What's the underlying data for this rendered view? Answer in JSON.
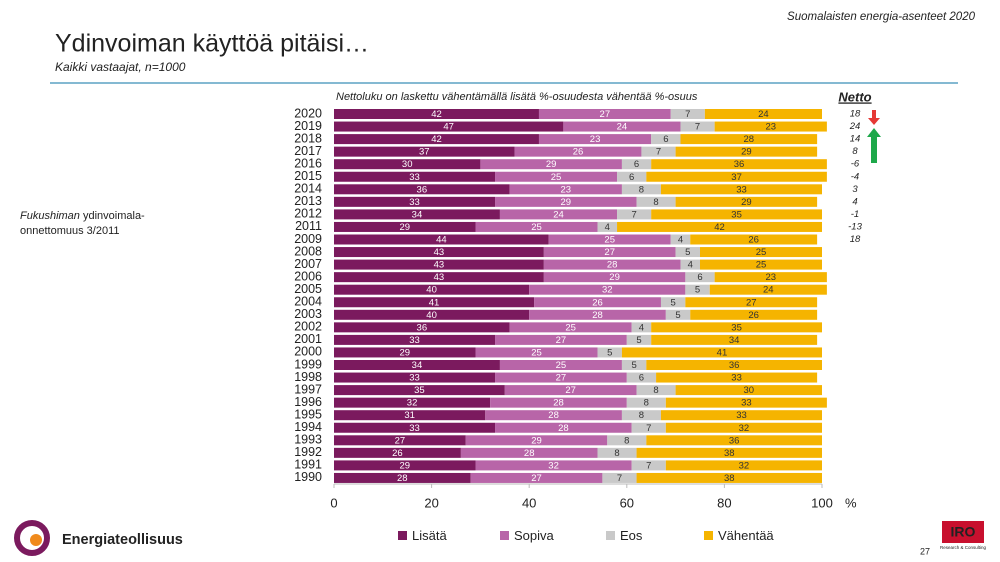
{
  "header": {
    "survey": "Suomalaisten energia-asenteet 2020",
    "page": "27"
  },
  "footer": {
    "logo_left": "Energiateollisuus",
    "logo_right": "IRO",
    "logo_right_sub": "Research & Consulting"
  },
  "chart_data": {
    "type": "stacked-bar-horizontal",
    "title": "Ydinvoiman käyttöä pitäisi…",
    "subtitle": "Kaikki vastaajat, n=1000",
    "note": "Nettoluku on laskettu vähentämällä lisätä %-osuudesta vähentää %-osuus",
    "x_unit": "%",
    "annotation": {
      "italic": "Fukushiman",
      "rest": " ydinvoimala-",
      "line2": "onnettomuus 3/2011"
    },
    "categories": [
      "2020",
      "2019",
      "2018",
      "2017",
      "2016",
      "2015",
      "2014",
      "2013",
      "2012",
      "2011",
      "2009",
      "2008",
      "2007",
      "2006",
      "2005",
      "2004",
      "2003",
      "2002",
      "2001",
      "2000",
      "1999",
      "1998",
      "1997",
      "1996",
      "1995",
      "1994",
      "1993",
      "1992",
      "1991",
      "1990"
    ],
    "xlim": [
      0,
      100
    ],
    "xticks": [
      0,
      20,
      40,
      60,
      80,
      100
    ],
    "legend": "bottom",
    "series": [
      {
        "name": "Lisätä",
        "color": "#7b1a5e",
        "label_color": "#ffffff",
        "values": [
          42,
          47,
          42,
          37,
          30,
          33,
          36,
          33,
          34,
          29,
          44,
          43,
          43,
          43,
          40,
          41,
          40,
          36,
          33,
          29,
          34,
          33,
          35,
          32,
          31,
          33,
          27,
          26,
          29,
          28
        ]
      },
      {
        "name": "Sopiva",
        "color": "#b865a8",
        "label_color": "#ffffff",
        "values": [
          27,
          24,
          23,
          26,
          29,
          25,
          23,
          29,
          24,
          25,
          25,
          27,
          28,
          29,
          32,
          26,
          28,
          25,
          27,
          25,
          25,
          27,
          27,
          28,
          28,
          28,
          29,
          28,
          32,
          27
        ]
      },
      {
        "name": "Eos",
        "color": "#c9c9c9",
        "label_color": "#333333",
        "values": [
          7,
          7,
          6,
          7,
          6,
          6,
          8,
          8,
          7,
          4,
          4,
          5,
          4,
          6,
          5,
          5,
          5,
          4,
          5,
          5,
          5,
          6,
          8,
          8,
          8,
          7,
          8,
          8,
          7,
          7
        ]
      },
      {
        "name": "Vähentää",
        "color": "#f5b400",
        "label_color": "#333333",
        "values": [
          24,
          23,
          28,
          29,
          36,
          37,
          33,
          29,
          35,
          42,
          26,
          25,
          25,
          23,
          24,
          27,
          26,
          35,
          34,
          41,
          36,
          33,
          30,
          33,
          33,
          32,
          36,
          38,
          32,
          38
        ]
      }
    ],
    "netto": {
      "label": "Netto",
      "values": [
        18,
        24,
        14,
        8,
        -6,
        -4,
        3,
        4,
        -1,
        -13,
        18,
        null,
        null,
        null,
        null,
        null,
        null,
        null,
        null,
        null,
        null,
        null,
        null,
        null,
        null,
        null,
        null,
        null,
        null,
        null
      ]
    }
  }
}
